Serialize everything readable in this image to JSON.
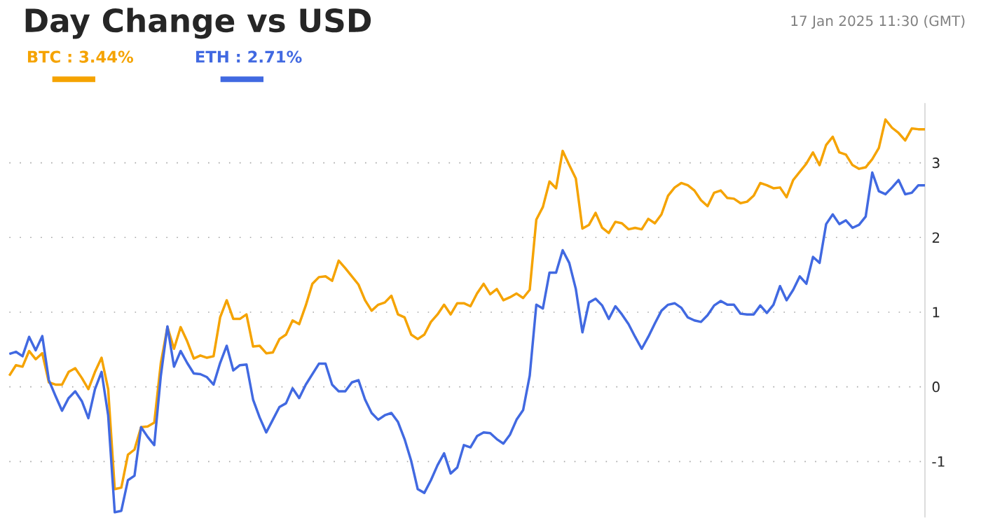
{
  "chart_data": {
    "type": "line",
    "title": "Day Change vs USD",
    "annotations": [
      "17 Jan 2025 11:30 (GMT)"
    ],
    "categories": [
      null,
      null,
      null,
      null,
      null,
      null,
      null,
      null,
      null,
      null,
      null,
      null,
      null,
      null,
      null,
      null,
      null,
      null,
      null,
      null,
      null,
      null,
      null,
      null,
      null,
      null,
      null,
      null,
      null,
      null,
      null,
      null,
      null,
      null,
      null,
      null,
      null,
      null,
      null,
      null,
      null,
      null,
      null,
      null,
      null,
      null,
      null,
      null,
      null,
      null,
      null,
      null,
      null,
      null,
      null,
      null,
      null,
      null,
      null,
      null,
      null,
      null,
      null,
      null,
      null,
      null,
      null,
      null,
      null,
      null,
      null,
      null,
      null,
      null,
      null,
      null,
      null,
      null,
      null,
      null,
      null,
      null,
      null,
      null,
      null,
      null,
      null,
      null,
      null,
      null,
      null,
      null,
      null,
      null,
      null,
      null,
      null,
      null,
      null,
      null,
      null,
      null,
      null,
      null,
      null,
      null,
      null,
      null,
      null,
      null,
      null,
      null,
      null,
      null,
      null,
      null,
      null,
      null,
      null,
      null,
      null,
      null,
      null,
      null,
      null,
      null,
      null,
      null,
      null,
      null,
      null,
      null,
      null,
      null,
      null,
      null,
      null,
      null,
      null,
      null
    ],
    "series": [
      {
        "name": "BTC : 3.44%",
        "color": "#f5a300",
        "values": [
          0.15,
          0.29,
          0.27,
          0.48,
          0.37,
          0.45,
          0.06,
          0.03,
          0.03,
          0.2,
          0.25,
          0.12,
          -0.03,
          0.2,
          0.39,
          -0.03,
          -1.37,
          -1.35,
          -0.91,
          -0.84,
          -0.54,
          -0.53,
          -0.48,
          0.32,
          0.8,
          0.51,
          0.8,
          0.61,
          0.38,
          0.42,
          0.39,
          0.41,
          0.93,
          1.16,
          0.91,
          0.91,
          0.97,
          0.54,
          0.55,
          0.45,
          0.46,
          0.64,
          0.7,
          0.89,
          0.84,
          1.09,
          1.38,
          1.47,
          1.48,
          1.42,
          1.69,
          1.59,
          1.48,
          1.37,
          1.16,
          1.02,
          1.1,
          1.13,
          1.22,
          0.97,
          0.93,
          0.7,
          0.64,
          0.7,
          0.87,
          0.97,
          1.1,
          0.97,
          1.12,
          1.12,
          1.08,
          1.25,
          1.38,
          1.24,
          1.31,
          1.16,
          1.2,
          1.25,
          1.19,
          1.3,
          2.24,
          2.41,
          2.75,
          2.66,
          3.16,
          2.97,
          2.79,
          2.12,
          2.17,
          2.33,
          2.13,
          2.06,
          2.21,
          2.19,
          2.11,
          2.13,
          2.11,
          2.25,
          2.19,
          2.31,
          2.56,
          2.67,
          2.73,
          2.7,
          2.63,
          2.5,
          2.42,
          2.6,
          2.63,
          2.53,
          2.52,
          2.46,
          2.48,
          2.56,
          2.73,
          2.7,
          2.66,
          2.67,
          2.54,
          2.77,
          2.88,
          2.99,
          3.14,
          2.97,
          3.24,
          3.35,
          3.14,
          3.11,
          2.97,
          2.92,
          2.94,
          3.05,
          3.2,
          3.58,
          3.47,
          3.4,
          3.3,
          3.46,
          3.45,
          3.45
        ]
      },
      {
        "name": "ETH : 2.71%",
        "color": "#4169e1",
        "values": [
          0.44,
          0.47,
          0.41,
          0.67,
          0.49,
          0.68,
          0.09,
          -0.12,
          -0.32,
          -0.15,
          -0.06,
          -0.19,
          -0.42,
          -0.03,
          0.2,
          -0.38,
          -1.68,
          -1.66,
          -1.25,
          -1.19,
          -0.54,
          -0.67,
          -0.78,
          0.15,
          0.81,
          0.27,
          0.48,
          0.32,
          0.18,
          0.17,
          0.13,
          0.03,
          0.32,
          0.55,
          0.22,
          0.29,
          0.3,
          -0.17,
          -0.41,
          -0.61,
          -0.44,
          -0.27,
          -0.22,
          -0.02,
          -0.15,
          0.03,
          0.17,
          0.31,
          0.31,
          0.03,
          -0.06,
          -0.06,
          0.06,
          0.09,
          -0.17,
          -0.35,
          -0.44,
          -0.38,
          -0.35,
          -0.47,
          -0.7,
          -0.99,
          -1.37,
          -1.42,
          -1.25,
          -1.05,
          -0.89,
          -1.16,
          -1.08,
          -0.78,
          -0.81,
          -0.66,
          -0.61,
          -0.62,
          -0.7,
          -0.76,
          -0.64,
          -0.44,
          -0.31,
          0.15,
          1.1,
          1.05,
          1.53,
          1.53,
          1.83,
          1.66,
          1.31,
          0.73,
          1.13,
          1.18,
          1.09,
          0.91,
          1.08,
          0.97,
          0.84,
          0.67,
          0.51,
          0.67,
          0.85,
          1.02,
          1.1,
          1.12,
          1.06,
          0.93,
          0.89,
          0.87,
          0.96,
          1.09,
          1.15,
          1.1,
          1.1,
          0.98,
          0.97,
          0.97,
          1.09,
          0.99,
          1.1,
          1.35,
          1.16,
          1.3,
          1.48,
          1.38,
          1.74,
          1.66,
          2.18,
          2.31,
          2.18,
          2.23,
          2.13,
          2.17,
          2.28,
          2.87,
          2.62,
          2.58,
          2.67,
          2.77,
          2.58,
          2.6,
          2.7,
          2.7
        ]
      }
    ],
    "ylim": [
      -1.75,
      3.8
    ],
    "yticks": [
      -1,
      0,
      1,
      2,
      3
    ],
    "grid": "y",
    "legend": "top left",
    "marker": "none",
    "line_style": "solid"
  }
}
